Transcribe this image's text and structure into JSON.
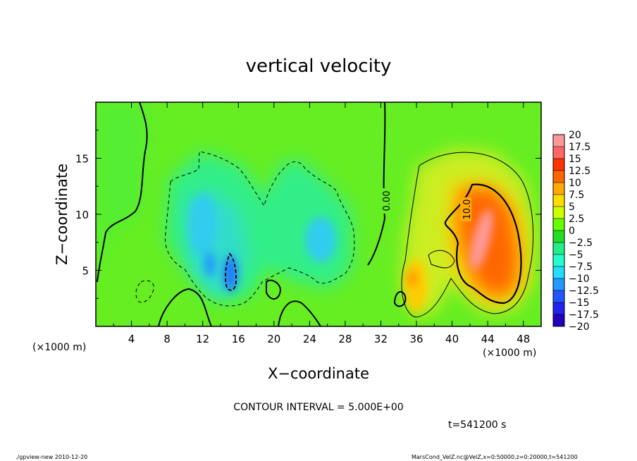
{
  "chart_data": {
    "type": "heatmap",
    "title": "vertical velocity",
    "xlabel": "X−coordinate",
    "ylabel": "Z−coordinate",
    "x_unit": "(×1000 m)",
    "y_unit": "(×1000 m)",
    "x_range": [
      0,
      50
    ],
    "y_range": [
      0,
      20
    ],
    "x_ticks": [
      "4",
      "8",
      "12",
      "16",
      "20",
      "24",
      "28",
      "32",
      "36",
      "40",
      "44",
      "48"
    ],
    "y_ticks": [
      "5",
      "10",
      "15"
    ],
    "colorbar": {
      "labels": [
        "20",
        "17.5",
        "15",
        "12.5",
        "10",
        "7.5",
        "5",
        "2.5",
        "0",
        "−2.5",
        "−5",
        "−7.5",
        "−10",
        "−12.5",
        "−15",
        "−17.5",
        "−20"
      ],
      "colors": [
        "#ff9999",
        "#ff6666",
        "#ff3300",
        "#ff6600",
        "#ffaa00",
        "#ffdd00",
        "#ccff00",
        "#66ff00",
        "#22dd22",
        "#22ee88",
        "#22ffcc",
        "#22ddff",
        "#2299ff",
        "#2255ff",
        "#2222ee",
        "#2200bb",
        "#7700cc"
      ]
    },
    "contour_labels": [
      "0.00",
      "10.0"
    ],
    "contour_interval": "CONTOUR INTERVAL = 5.000E+00",
    "time": "t=541200 s",
    "features": [
      {
        "x": 43.5,
        "z": 8.5,
        "value": 18
      },
      {
        "x": 45,
        "z": 5,
        "value": 12
      },
      {
        "x": 35,
        "z": 4.5,
        "value": 7.5
      },
      {
        "x": 11,
        "z": 9,
        "value": -6
      },
      {
        "x": 15,
        "z": 4,
        "value": -12
      },
      {
        "x": 25,
        "z": 7.5,
        "value": -7
      }
    ]
  },
  "footer": {
    "left": "./gpview-new   2010-12-20",
    "right": "MarsCond_VelZ.nc@VelZ,x=0:50000,z=0:20000,t=541200"
  }
}
